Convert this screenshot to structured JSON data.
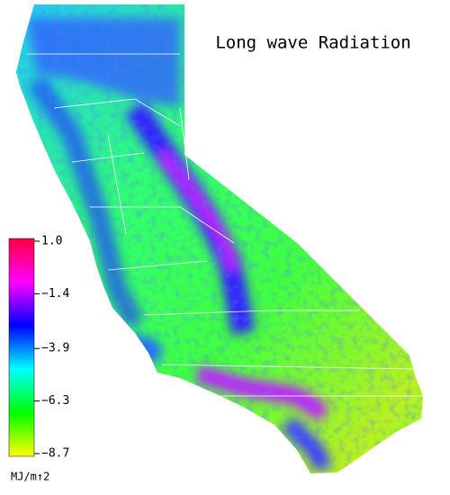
{
  "title": "Long wave Radiation",
  "colorbar": {
    "unit": "MJ/m↑2",
    "range": [
      -8.7,
      1.0
    ],
    "colors": [
      "#ffff00",
      "#00ff00",
      "#00ffff",
      "#0000ff",
      "#ff00ff",
      "#ff0040"
    ],
    "ticks": [
      {
        "value": 1.0,
        "label": "1.0"
      },
      {
        "value": -1.4,
        "label": "−1.4"
      },
      {
        "value": -3.9,
        "label": "−3.9"
      },
      {
        "value": -6.3,
        "label": "−6.3"
      },
      {
        "value": -8.7,
        "label": "−8.7"
      }
    ]
  }
}
